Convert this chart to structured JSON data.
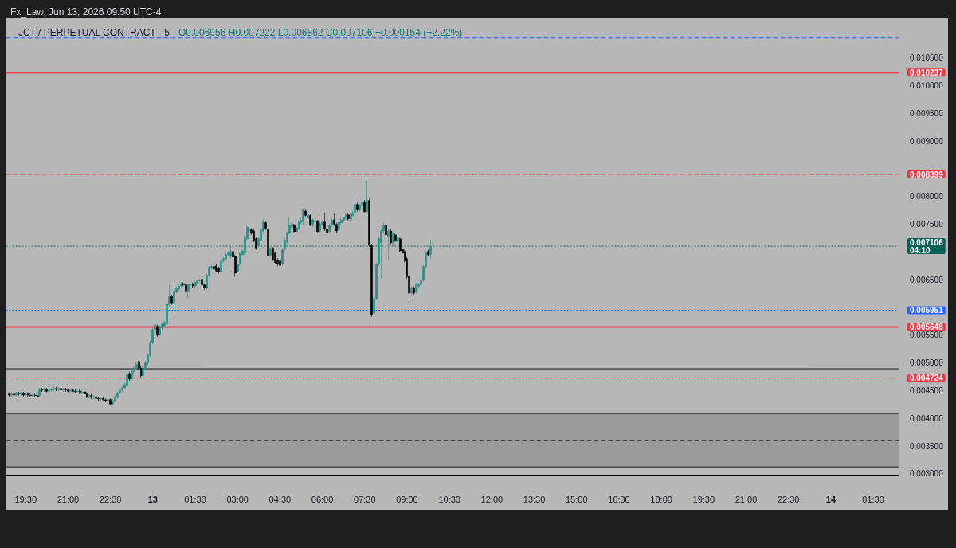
{
  "chart_data": {
    "type": "candlestick",
    "title": "JCT / PERPETUAL CONTRACT · 5",
    "subtitle": "O0.006956 H0.007222 L0.006862 C0.007106 +0.000154 (+2.22%)",
    "annotations": [
      "Fx_Law, Jun 13, 2026 09:50 UTC-4"
    ],
    "x": [
      "2026-06-12T18:55",
      "2026-06-12T19:00",
      "2026-06-12T19:05",
      "2026-06-12T19:10",
      "2026-06-12T19:15",
      "2026-06-12T19:20",
      "2026-06-12T19:25",
      "2026-06-12T19:30",
      "2026-06-12T19:35",
      "2026-06-12T19:40",
      "2026-06-12T19:45",
      "2026-06-12T19:50",
      "2026-06-12T19:55",
      "2026-06-12T20:00",
      "2026-06-12T20:05",
      "2026-06-12T20:10",
      "2026-06-12T20:15",
      "2026-06-12T20:20",
      "2026-06-12T20:25",
      "2026-06-12T20:30",
      "2026-06-12T20:35",
      "2026-06-12T20:40",
      "2026-06-12T20:45",
      "2026-06-12T20:50",
      "2026-06-12T20:55",
      "2026-06-12T21:00",
      "2026-06-12T21:05",
      "2026-06-12T21:10",
      "2026-06-12T21:15",
      "2026-06-12T21:20",
      "2026-06-12T21:25",
      "2026-06-12T21:30",
      "2026-06-12T21:35",
      "2026-06-12T21:40",
      "2026-06-12T21:45",
      "2026-06-12T21:50",
      "2026-06-12T21:55",
      "2026-06-12T22:00",
      "2026-06-12T22:05",
      "2026-06-12T22:10",
      "2026-06-12T22:15",
      "2026-06-12T22:20",
      "2026-06-12T22:25",
      "2026-06-12T22:30",
      "2026-06-12T22:35",
      "2026-06-12T22:40",
      "2026-06-12T22:45",
      "2026-06-12T22:50",
      "2026-06-12T22:55",
      "2026-06-12T23:00",
      "2026-06-12T23:05",
      "2026-06-12T23:10",
      "2026-06-12T23:15",
      "2026-06-12T23:20",
      "2026-06-12T23:25",
      "2026-06-12T23:30",
      "2026-06-12T23:35",
      "2026-06-12T23:40",
      "2026-06-12T23:45",
      "2026-06-12T23:50",
      "2026-06-12T23:55",
      "2026-06-13T00:00",
      "2026-06-13T00:05",
      "2026-06-13T00:10",
      "2026-06-13T00:15",
      "2026-06-13T00:20",
      "2026-06-13T00:25",
      "2026-06-13T00:30",
      "2026-06-13T00:35",
      "2026-06-13T00:40",
      "2026-06-13T00:45",
      "2026-06-13T00:50",
      "2026-06-13T00:55",
      "2026-06-13T01:00",
      "2026-06-13T01:05",
      "2026-06-13T01:10",
      "2026-06-13T01:15",
      "2026-06-13T01:20",
      "2026-06-13T01:25",
      "2026-06-13T01:30",
      "2026-06-13T01:35",
      "2026-06-13T01:40",
      "2026-06-13T01:45",
      "2026-06-13T01:50",
      "2026-06-13T01:55",
      "2026-06-13T02:00",
      "2026-06-13T02:05",
      "2026-06-13T02:10",
      "2026-06-13T02:15",
      "2026-06-13T02:20",
      "2026-06-13T02:25",
      "2026-06-13T02:30",
      "2026-06-13T02:35",
      "2026-06-13T02:40",
      "2026-06-13T02:45",
      "2026-06-13T02:50",
      "2026-06-13T02:55",
      "2026-06-13T03:00",
      "2026-06-13T03:05",
      "2026-06-13T03:10",
      "2026-06-13T03:15",
      "2026-06-13T03:20",
      "2026-06-13T03:25",
      "2026-06-13T03:30",
      "2026-06-13T03:35",
      "2026-06-13T03:40",
      "2026-06-13T03:45",
      "2026-06-13T03:50",
      "2026-06-13T03:55",
      "2026-06-13T04:00",
      "2026-06-13T04:05",
      "2026-06-13T04:10",
      "2026-06-13T04:15",
      "2026-06-13T04:20",
      "2026-06-13T04:25",
      "2026-06-13T04:30",
      "2026-06-13T04:35",
      "2026-06-13T04:40",
      "2026-06-13T04:45",
      "2026-06-13T04:50",
      "2026-06-13T04:55",
      "2026-06-13T05:00",
      "2026-06-13T05:05",
      "2026-06-13T05:10",
      "2026-06-13T05:15",
      "2026-06-13T05:20",
      "2026-06-13T05:25",
      "2026-06-13T05:30",
      "2026-06-13T05:35",
      "2026-06-13T05:40",
      "2026-06-13T05:45",
      "2026-06-13T05:50",
      "2026-06-13T05:55",
      "2026-06-13T06:00",
      "2026-06-13T06:05",
      "2026-06-13T06:10",
      "2026-06-13T06:15",
      "2026-06-13T06:20",
      "2026-06-13T06:25",
      "2026-06-13T06:30",
      "2026-06-13T06:35",
      "2026-06-13T06:40",
      "2026-06-13T06:45",
      "2026-06-13T06:50",
      "2026-06-13T06:55",
      "2026-06-13T07:00",
      "2026-06-13T07:05",
      "2026-06-13T07:10",
      "2026-06-13T07:15",
      "2026-06-13T07:20",
      "2026-06-13T07:25",
      "2026-06-13T07:30",
      "2026-06-13T07:35",
      "2026-06-13T07:40",
      "2026-06-13T07:45",
      "2026-06-13T07:50",
      "2026-06-13T07:55",
      "2026-06-13T08:00",
      "2026-06-13T08:05",
      "2026-06-13T08:10",
      "2026-06-13T08:15",
      "2026-06-13T08:20",
      "2026-06-13T08:25",
      "2026-06-13T08:30",
      "2026-06-13T08:35",
      "2026-06-13T08:40",
      "2026-06-13T08:45",
      "2026-06-13T08:50",
      "2026-06-13T08:55",
      "2026-06-13T09:00",
      "2026-06-13T09:05",
      "2026-06-13T09:10",
      "2026-06-13T09:15",
      "2026-06-13T09:20",
      "2026-06-13T09:25",
      "2026-06-13T09:30",
      "2026-06-13T09:35",
      "2026-06-13T09:40",
      "2026-06-13T09:45",
      "2026-06-13T09:50"
    ],
    "ohlc": [
      [
        0.00444,
        0.00447,
        0.00439,
        0.00442
      ],
      [
        0.00442,
        0.00447,
        0.00439,
        0.00444
      ],
      [
        0.00444,
        0.00447,
        0.00439,
        0.00442
      ],
      [
        0.00442,
        0.00448,
        0.00439,
        0.00445
      ],
      [
        0.00445,
        0.00448,
        0.00441,
        0.00444
      ],
      [
        0.00444,
        0.00448,
        0.00441,
        0.00445
      ],
      [
        0.00445,
        0.00448,
        0.00439,
        0.00442
      ],
      [
        0.00442,
        0.00447,
        0.00439,
        0.00444
      ],
      [
        0.00444,
        0.00447,
        0.00439,
        0.00442
      ],
      [
        0.00442,
        0.00445,
        0.00438,
        0.00441
      ],
      [
        0.00441,
        0.00445,
        0.00438,
        0.00442
      ],
      [
        0.00442,
        0.00445,
        0.00438,
        0.00441
      ],
      [
        0.00441,
        0.00444,
        0.00436,
        0.00439
      ],
      [
        0.00441,
        0.00455,
        0.00439,
        0.00452
      ],
      [
        0.00452,
        0.00455,
        0.00448,
        0.00451
      ],
      [
        0.00451,
        0.00455,
        0.00448,
        0.00452
      ],
      [
        0.00452,
        0.00455,
        0.00447,
        0.00449
      ],
      [
        0.00449,
        0.00454,
        0.00447,
        0.00451
      ],
      [
        0.00451,
        0.00455,
        0.00448,
        0.00452
      ],
      [
        0.00452,
        0.00457,
        0.00449,
        0.00454
      ],
      [
        0.00454,
        0.00457,
        0.00449,
        0.00452
      ],
      [
        0.00452,
        0.00457,
        0.00449,
        0.00454
      ],
      [
        0.00454,
        0.00457,
        0.00448,
        0.00451
      ],
      [
        0.00451,
        0.00455,
        0.00448,
        0.00452
      ],
      [
        0.00452,
        0.00455,
        0.00448,
        0.00451
      ],
      [
        0.00451,
        0.00454,
        0.00447,
        0.00449
      ],
      [
        0.00449,
        0.00454,
        0.00447,
        0.00451
      ],
      [
        0.00451,
        0.00454,
        0.00447,
        0.00449
      ],
      [
        0.00449,
        0.00452,
        0.00445,
        0.00448
      ],
      [
        0.00448,
        0.00452,
        0.00445,
        0.00449
      ],
      [
        0.00449,
        0.00452,
        0.00444,
        0.00447
      ],
      [
        0.00447,
        0.00451,
        0.00444,
        0.00448
      ],
      [
        0.00448,
        0.00451,
        0.00441,
        0.00444
      ],
      [
        0.00444,
        0.00447,
        0.00436,
        0.00439
      ],
      [
        0.00439,
        0.00444,
        0.00436,
        0.00441
      ],
      [
        0.00441,
        0.00444,
        0.00435,
        0.00438
      ],
      [
        0.00438,
        0.00442,
        0.00435,
        0.00439
      ],
      [
        0.00439,
        0.00442,
        0.00434,
        0.00436
      ],
      [
        0.00436,
        0.00439,
        0.00432,
        0.00435
      ],
      [
        0.00435,
        0.00439,
        0.00432,
        0.00436
      ],
      [
        0.00436,
        0.00439,
        0.00431,
        0.00434
      ],
      [
        0.00434,
        0.00436,
        0.00429,
        0.00432
      ],
      [
        0.00432,
        0.00436,
        0.00429,
        0.00434
      ],
      [
        0.00434,
        0.00436,
        0.00424,
        0.00426
      ],
      [
        0.00426,
        0.00435,
        0.00425,
        0.00432
      ],
      [
        0.00432,
        0.00441,
        0.00429,
        0.00438
      ],
      [
        0.00438,
        0.00448,
        0.00435,
        0.00445
      ],
      [
        0.00445,
        0.00454,
        0.00442,
        0.00451
      ],
      [
        0.00451,
        0.00458,
        0.00448,
        0.00455
      ],
      [
        0.00455,
        0.00464,
        0.00452,
        0.00461
      ],
      [
        0.00459,
        0.00482,
        0.00457,
        0.0048
      ],
      [
        0.00481,
        0.00484,
        0.00468,
        0.00471
      ],
      [
        0.00471,
        0.00488,
        0.00468,
        0.00485
      ],
      [
        0.00484,
        0.00494,
        0.00481,
        0.00491
      ],
      [
        0.00491,
        0.00501,
        0.00488,
        0.00498
      ],
      [
        0.00501,
        0.00504,
        0.00488,
        0.00491
      ],
      [
        0.00491,
        0.00494,
        0.00474,
        0.00477
      ],
      [
        0.00477,
        0.00494,
        0.00474,
        0.00491
      ],
      [
        0.00491,
        0.00503,
        0.00488,
        0.005
      ],
      [
        0.005,
        0.00517,
        0.00497,
        0.00514
      ],
      [
        0.00513,
        0.0054,
        0.0051,
        0.00537
      ],
      [
        0.00537,
        0.00563,
        0.00534,
        0.0056
      ],
      [
        0.0056,
        0.00576,
        0.00557,
        0.00569
      ],
      [
        0.00566,
        0.00569,
        0.00547,
        0.0055
      ],
      [
        0.00551,
        0.00567,
        0.00549,
        0.00564
      ],
      [
        0.00563,
        0.00573,
        0.0056,
        0.0057
      ],
      [
        0.00567,
        0.00576,
        0.00564,
        0.00573
      ],
      [
        0.0057,
        0.00609,
        0.00567,
        0.00606
      ],
      [
        0.00605,
        0.00641,
        0.00602,
        0.0062
      ],
      [
        0.0062,
        0.00623,
        0.00605,
        0.00607
      ],
      [
        0.00607,
        0.00633,
        0.0059,
        0.0063
      ],
      [
        0.00629,
        0.00638,
        0.00626,
        0.00635
      ],
      [
        0.00633,
        0.00642,
        0.0063,
        0.00639
      ],
      [
        0.00639,
        0.00646,
        0.00636,
        0.00643
      ],
      [
        0.00643,
        0.00646,
        0.00638,
        0.00641
      ],
      [
        0.00641,
        0.00643,
        0.00628,
        0.0063
      ],
      [
        0.0063,
        0.00643,
        0.00616,
        0.00641
      ],
      [
        0.00641,
        0.00645,
        0.00638,
        0.00642
      ],
      [
        0.00642,
        0.00645,
        0.00636,
        0.00639
      ],
      [
        0.00639,
        0.00648,
        0.00636,
        0.00645
      ],
      [
        0.00645,
        0.00651,
        0.00642,
        0.00648
      ],
      [
        0.00648,
        0.00652,
        0.00645,
        0.00649
      ],
      [
        0.00651,
        0.00653,
        0.00638,
        0.00641
      ],
      [
        0.00641,
        0.00643,
        0.00632,
        0.00635
      ],
      [
        0.00636,
        0.00661,
        0.00633,
        0.00658
      ],
      [
        0.00658,
        0.00675,
        0.00655,
        0.00672
      ],
      [
        0.00671,
        0.00676,
        0.00668,
        0.00674
      ],
      [
        0.00674,
        0.00676,
        0.00666,
        0.00669
      ],
      [
        0.00675,
        0.00678,
        0.00664,
        0.00666
      ],
      [
        0.00671,
        0.00674,
        0.00661,
        0.00664
      ],
      [
        0.00665,
        0.00686,
        0.00662,
        0.00684
      ],
      [
        0.00684,
        0.00691,
        0.00681,
        0.00688
      ],
      [
        0.00688,
        0.00698,
        0.00685,
        0.00695
      ],
      [
        0.00695,
        0.00701,
        0.00692,
        0.00698
      ],
      [
        0.00692,
        0.00714,
        0.00689,
        0.00701
      ],
      [
        0.00701,
        0.00704,
        0.00688,
        0.00691
      ],
      [
        0.00692,
        0.00695,
        0.00655,
        0.00662
      ],
      [
        0.00664,
        0.00681,
        0.00661,
        0.00678
      ],
      [
        0.00678,
        0.00699,
        0.00675,
        0.00697
      ],
      [
        0.00695,
        0.00705,
        0.00692,
        0.00702
      ],
      [
        0.00698,
        0.0073,
        0.00695,
        0.00727
      ],
      [
        0.00724,
        0.00748,
        0.00721,
        0.00745
      ],
      [
        0.00738,
        0.00744,
        0.00735,
        0.00741
      ],
      [
        0.0074,
        0.00743,
        0.00731,
        0.00734
      ],
      [
        0.00738,
        0.00741,
        0.00718,
        0.00721
      ],
      [
        0.00724,
        0.00727,
        0.00704,
        0.00707
      ],
      [
        0.00712,
        0.00727,
        0.00709,
        0.00724
      ],
      [
        0.00721,
        0.00744,
        0.00718,
        0.00741
      ],
      [
        0.00738,
        0.0076,
        0.00735,
        0.00755
      ],
      [
        0.00753,
        0.00755,
        0.0074,
        0.00743
      ],
      [
        0.00741,
        0.00744,
        0.00691,
        0.00694
      ],
      [
        0.00694,
        0.00709,
        0.00691,
        0.00707
      ],
      [
        0.00707,
        0.00709,
        0.00684,
        0.00686
      ],
      [
        0.00698,
        0.00701,
        0.00678,
        0.00681
      ],
      [
        0.00686,
        0.00689,
        0.00674,
        0.00679
      ],
      [
        0.00684,
        0.00686,
        0.00674,
        0.00676
      ],
      [
        0.00678,
        0.00707,
        0.00675,
        0.00704
      ],
      [
        0.00705,
        0.00724,
        0.00702,
        0.00721
      ],
      [
        0.00718,
        0.00737,
        0.00715,
        0.00734
      ],
      [
        0.00734,
        0.00764,
        0.00731,
        0.00748
      ],
      [
        0.00745,
        0.00753,
        0.00743,
        0.0075
      ],
      [
        0.00748,
        0.00751,
        0.00734,
        0.00737
      ],
      [
        0.00737,
        0.00747,
        0.00734,
        0.00744
      ],
      [
        0.00743,
        0.00757,
        0.0074,
        0.00754
      ],
      [
        0.00753,
        0.00761,
        0.0075,
        0.00758
      ],
      [
        0.00757,
        0.00778,
        0.00748,
        0.00776
      ],
      [
        0.00774,
        0.00777,
        0.00763,
        0.00766
      ],
      [
        0.00761,
        0.0077,
        0.00758,
        0.00767
      ],
      [
        0.00766,
        0.00768,
        0.00747,
        0.0075
      ],
      [
        0.00748,
        0.00761,
        0.00745,
        0.00758
      ],
      [
        0.00754,
        0.0076,
        0.00751,
        0.00757
      ],
      [
        0.00755,
        0.00758,
        0.00734,
        0.00737
      ],
      [
        0.00738,
        0.00754,
        0.00735,
        0.00751
      ],
      [
        0.0075,
        0.00757,
        0.00747,
        0.00754
      ],
      [
        0.00754,
        0.00771,
        0.00738,
        0.00741
      ],
      [
        0.00741,
        0.00744,
        0.00732,
        0.00735
      ],
      [
        0.00737,
        0.00751,
        0.00734,
        0.00748
      ],
      [
        0.00748,
        0.00761,
        0.00745,
        0.00758
      ],
      [
        0.00758,
        0.0077,
        0.00747,
        0.0075
      ],
      [
        0.0075,
        0.00753,
        0.00735,
        0.00738
      ],
      [
        0.0074,
        0.00757,
        0.00737,
        0.00754
      ],
      [
        0.00753,
        0.00761,
        0.0075,
        0.00758
      ],
      [
        0.00757,
        0.00766,
        0.00754,
        0.00763
      ],
      [
        0.00761,
        0.0077,
        0.00758,
        0.00767
      ],
      [
        0.00767,
        0.0077,
        0.00757,
        0.0076
      ],
      [
        0.0076,
        0.0077,
        0.00757,
        0.00767
      ],
      [
        0.00766,
        0.00774,
        0.00763,
        0.00771
      ],
      [
        0.0077,
        0.00806,
        0.00767,
        0.00786
      ],
      [
        0.00786,
        0.00789,
        0.00773,
        0.00776
      ],
      [
        0.00776,
        0.00786,
        0.00773,
        0.00783
      ],
      [
        0.00783,
        0.00799,
        0.0078,
        0.00791
      ],
      [
        0.00791,
        0.00794,
        0.0077,
        0.00773
      ],
      [
        0.00773,
        0.00829,
        0.0077,
        0.00793
      ],
      [
        0.00793,
        0.00796,
        0.00709,
        0.00712
      ],
      [
        0.00712,
        0.00715,
        0.00583,
        0.00587
      ],
      [
        0.0059,
        0.00619,
        0.00563,
        0.00616
      ],
      [
        0.00616,
        0.00681,
        0.00613,
        0.00678
      ],
      [
        0.00678,
        0.00727,
        0.00675,
        0.00724
      ],
      [
        0.00717,
        0.00741,
        0.00652,
        0.00738
      ],
      [
        0.00738,
        0.00753,
        0.00735,
        0.00748
      ],
      [
        0.00748,
        0.00751,
        0.00728,
        0.00731
      ],
      [
        0.00728,
        0.00741,
        0.00685,
        0.00738
      ],
      [
        0.00738,
        0.00741,
        0.00714,
        0.00717
      ],
      [
        0.00717,
        0.00737,
        0.00714,
        0.00734
      ],
      [
        0.00731,
        0.00734,
        0.00718,
        0.00721
      ],
      [
        0.00721,
        0.00727,
        0.00718,
        0.00724
      ],
      [
        0.00724,
        0.00727,
        0.00699,
        0.00702
      ],
      [
        0.00705,
        0.00708,
        0.00695,
        0.00698
      ],
      [
        0.00701,
        0.00704,
        0.00681,
        0.00684
      ],
      [
        0.00688,
        0.00691,
        0.00652,
        0.00655
      ],
      [
        0.00656,
        0.00659,
        0.00613,
        0.00626
      ],
      [
        0.00626,
        0.00638,
        0.00623,
        0.00635
      ],
      [
        0.00635,
        0.00638,
        0.00623,
        0.00626
      ],
      [
        0.00628,
        0.00645,
        0.00625,
        0.00642
      ],
      [
        0.00638,
        0.00645,
        0.00635,
        0.00642
      ],
      [
        0.00641,
        0.00652,
        0.00616,
        0.00649
      ],
      [
        0.00649,
        0.00676,
        0.00646,
        0.00674
      ],
      [
        0.00674,
        0.00701,
        0.00671,
        0.00698
      ],
      [
        0.00701,
        0.00704,
        0.00692,
        0.00695
      ],
      [
        0.006956,
        0.007222,
        0.006862,
        0.007106
      ]
    ],
    "colors": [
      "#000000",
      "#2a8c87",
      "#000000",
      "#2a8c87",
      "#000000",
      "#2a8c87",
      "#000000",
      "#2a8c87",
      "#000000",
      "#000000",
      "#2a8c87",
      "#000000",
      "#000000",
      "#2a8c87",
      "#000000",
      "#2a8c87",
      "#000000",
      "#2a8c87",
      "#2a8c87",
      "#2a8c87",
      "#000000",
      "#2a8c87",
      "#000000",
      "#2a8c87",
      "#000000",
      "#000000",
      "#2a8c87",
      "#000000",
      "#000000",
      "#2a8c87",
      "#000000",
      "#2a8c87",
      "#000000",
      "#000000",
      "#2a8c87",
      "#000000",
      "#2a8c87",
      "#000000",
      "#000000",
      "#2a8c87",
      "#000000",
      "#000000",
      "#2a8c87",
      "#000000",
      "#2a8c87",
      "#2a8c87",
      "#2a8c87",
      "#2a8c87",
      "#2a8c87",
      "#2a8c87",
      "#2a8c87",
      "#000000",
      "#2a8c87",
      "#2a8c87",
      "#2a8c87",
      "#000000",
      "#000000",
      "#2a8c87",
      "#2a8c87",
      "#2a8c87",
      "#2a8c87",
      "#2a8c87",
      "#2a8c87",
      "#000000",
      "#2a8c87",
      "#2a8c87",
      "#2a8c87",
      "#2a8c87",
      "#2a8c87",
      "#000000",
      "#2a8c87",
      "#2a8c87",
      "#2a8c87",
      "#2a8c87",
      "#000000",
      "#000000",
      "#2a8c87",
      "#2a8c87",
      "#000000",
      "#2a8c87",
      "#2a8c87",
      "#2a8c87",
      "#000000",
      "#000000",
      "#2a8c87",
      "#2a8c87",
      "#2a8c87",
      "#000000",
      "#000000",
      "#000000",
      "#2a8c87",
      "#2a8c87",
      "#2a8c87",
      "#2a8c87",
      "#2a8c87",
      "#000000",
      "#000000",
      "#2a8c87",
      "#2a8c87",
      "#2a8c87",
      "#2a8c87",
      "#2a8c87",
      "#2a8c87",
      "#000000",
      "#000000",
      "#000000",
      "#2a8c87",
      "#2a8c87",
      "#2a8c87",
      "#000000",
      "#000000",
      "#2a8c87",
      "#000000",
      "#000000",
      "#000000",
      "#000000",
      "#2a8c87",
      "#2a8c87",
      "#2a8c87",
      "#2a8c87",
      "#2a8c87",
      "#000000",
      "#2a8c87",
      "#2a8c87",
      "#2a8c87",
      "#2a8c87",
      "#000000",
      "#2a8c87",
      "#000000",
      "#2a8c87",
      "#2a8c87",
      "#000000",
      "#2a8c87",
      "#2a8c87",
      "#000000",
      "#000000",
      "#2a8c87",
      "#2a8c87",
      "#000000",
      "#000000",
      "#2a8c87",
      "#2a8c87",
      "#2a8c87",
      "#2a8c87",
      "#000000",
      "#2a8c87",
      "#2a8c87",
      "#2a8c87",
      "#000000",
      "#2a8c87",
      "#2a8c87",
      "#000000",
      "#2a8c87",
      "#000000",
      "#000000",
      "#2a8c87",
      "#2a8c87",
      "#2a8c87",
      "#2a8c87",
      "#2a8c87",
      "#000000",
      "#2a8c87",
      "#000000",
      "#2a8c87",
      "#000000",
      "#2a8c87",
      "#000000",
      "#000000",
      "#000000",
      "#000000",
      "#000000",
      "#2a8c87",
      "#000000",
      "#2a8c87",
      "#2a8c87",
      "#2a8c87",
      "#2a8c87",
      "#2a8c87",
      "#000000",
      "#2a8c87"
    ],
    "xlim": [
      "2026-06-12T18:49",
      "2026-06-14T02:24"
    ],
    "xticks": [
      {
        "value": "2026-06-12T19:30",
        "label": "19:30"
      },
      {
        "value": "2026-06-12T21:00",
        "label": "21:00"
      },
      {
        "value": "2026-06-12T22:30",
        "label": "22:30"
      },
      {
        "value": "2026-06-13T00:00",
        "label": "13"
      },
      {
        "value": "2026-06-13T01:30",
        "label": "01:30"
      },
      {
        "value": "2026-06-13T03:00",
        "label": "03:00"
      },
      {
        "value": "2026-06-13T04:30",
        "label": "04:30"
      },
      {
        "value": "2026-06-13T06:00",
        "label": "06:00"
      },
      {
        "value": "2026-06-13T07:30",
        "label": "07:30"
      },
      {
        "value": "2026-06-13T09:00",
        "label": "09:00"
      },
      {
        "value": "2026-06-13T10:30",
        "label": "10:30"
      },
      {
        "value": "2026-06-13T12:00",
        "label": "12:00"
      },
      {
        "value": "2026-06-13T13:30",
        "label": "13:30"
      },
      {
        "value": "2026-06-13T15:00",
        "label": "15:00"
      },
      {
        "value": "2026-06-13T16:30",
        "label": "16:30"
      },
      {
        "value": "2026-06-13T18:00",
        "label": "18:00"
      },
      {
        "value": "2026-06-13T19:30",
        "label": "19:30"
      },
      {
        "value": "2026-06-13T21:00",
        "label": "21:00"
      },
      {
        "value": "2026-06-13T22:30",
        "label": "22:30"
      },
      {
        "value": "2026-06-14T00:00",
        "label": "14"
      },
      {
        "value": "2026-06-14T01:30",
        "label": "01:30"
      }
    ],
    "ylim": [
      0.00297,
      0.01123
    ],
    "yticks": [
      {
        "value": 0.003,
        "label": "0.003000"
      },
      {
        "value": 0.0035,
        "label": "0.003500"
      },
      {
        "value": 0.004,
        "label": "0.004000"
      },
      {
        "value": 0.0045,
        "label": "0.004500"
      },
      {
        "value": 0.005,
        "label": "0.005000"
      },
      {
        "value": 0.0055,
        "label": "0.005500"
      },
      {
        "value": 0.0065,
        "label": "0.006500"
      },
      {
        "value": 0.0075,
        "label": "0.007500"
      },
      {
        "value": 0.008,
        "label": "0.008000"
      },
      {
        "value": 0.009,
        "label": "0.009000"
      },
      {
        "value": 0.0095,
        "label": "0.009500"
      },
      {
        "value": 0.01,
        "label": "0.010000"
      },
      {
        "value": 0.0105,
        "label": "0.010500"
      }
    ],
    "ref_lines": [
      {
        "axis": "y",
        "value": 0.01086,
        "label": null,
        "color": "#2962ff",
        "line_style": "dashed"
      },
      {
        "axis": "y",
        "value": 0.010237,
        "label": "0.010237",
        "color": "#f23645",
        "line_style": "solid"
      },
      {
        "axis": "y",
        "value": 0.008399,
        "label": "0.008399",
        "color": "#f23645",
        "line_style": "dashed"
      },
      {
        "axis": "y",
        "value": 0.007106,
        "label": "0.007106\n04:10",
        "color": "#0a5f5b",
        "line_style": "dotted"
      },
      {
        "axis": "y",
        "value": 0.005951,
        "label": "0.005951",
        "color": "#2962ff",
        "line_style": "dotted"
      },
      {
        "axis": "y",
        "value": 0.005648,
        "label": "0.005648",
        "color": "#f23645",
        "line_style": "solid"
      },
      {
        "axis": "y",
        "value": 0.004724,
        "label": "0.004724",
        "color": "#f23645",
        "line_style": "dotted"
      },
      {
        "axis": "y",
        "value": 0.00489,
        "label": null,
        "color": "#5a5a5a",
        "line_style": "solid"
      },
      {
        "axis": "y",
        "value": 0.00409,
        "label": null,
        "color": "#4a4a4a",
        "line_style": "solid"
      },
      {
        "axis": "y",
        "value": 0.0036,
        "label": null,
        "color": "#1e1e1e",
        "line_style": "dashed"
      },
      {
        "axis": "y",
        "value": 0.00312,
        "label": null,
        "color": "#4a4a4a",
        "line_style": "solid"
      }
    ],
    "bands": [
      {
        "axis": "y",
        "from": 0.00312,
        "to": 0.00409,
        "label": null,
        "color": "#9a9a9a"
      }
    ]
  }
}
